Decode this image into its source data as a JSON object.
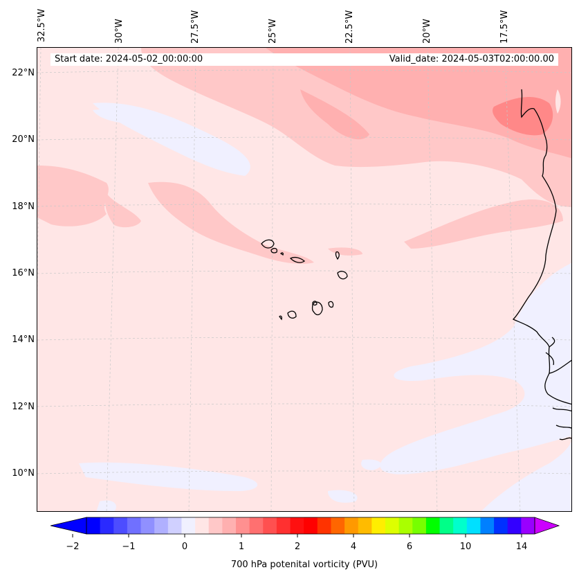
{
  "header": {
    "start_date": "Start date: 2024-05-02_00:00:00",
    "valid_date": "Valid_date: 2024-05-03T02:00:00.00"
  },
  "map": {
    "projection": "lambert-conformal",
    "lon_ticks": [
      "32.5°W",
      "30°W",
      "27.5°W",
      "25°W",
      "22.5°W",
      "20°W",
      "17.5°W"
    ],
    "lat_ticks": [
      "22°N",
      "20°N",
      "18°N",
      "16°N",
      "14°N",
      "12°N",
      "10°N"
    ],
    "gridlines": true,
    "field": "700 hPa potential vorticity",
    "colors": {
      "background_field": "#ffe6e6",
      "low_pv": "#f0f0ff",
      "mid_pv": "#ffc8c8",
      "high_pv": "#ffb0b0",
      "peak_pv": "#ff8888",
      "coastline": "#000000"
    }
  },
  "colorbar": {
    "label": "700 hPa potenital vorticity (PVU)",
    "tick_labels": [
      "−2",
      "−1",
      "0",
      "1",
      "2",
      "4",
      "6",
      "10",
      "14"
    ],
    "extend": "both",
    "colors": [
      "#0000ff",
      "#2a2aff",
      "#4d4dff",
      "#7070ff",
      "#9090ff",
      "#b0b0ff",
      "#d0d0ff",
      "#f0f0ff",
      "#ffe6e6",
      "#ffc8c8",
      "#ffb0b0",
      "#ff9090",
      "#ff7070",
      "#ff5050",
      "#ff3030",
      "#ff1010",
      "#ff0000",
      "#ff3300",
      "#ff6600",
      "#ff9900",
      "#ffbb00",
      "#ffee00",
      "#ddff00",
      "#aaff00",
      "#77ff00",
      "#00ff00",
      "#00ff88",
      "#00ffcc",
      "#00e0ff",
      "#0080ff",
      "#0030ff",
      "#3300ff",
      "#9900ff"
    ],
    "under_color": "#0000ff",
    "over_color": "#cc00ff"
  }
}
